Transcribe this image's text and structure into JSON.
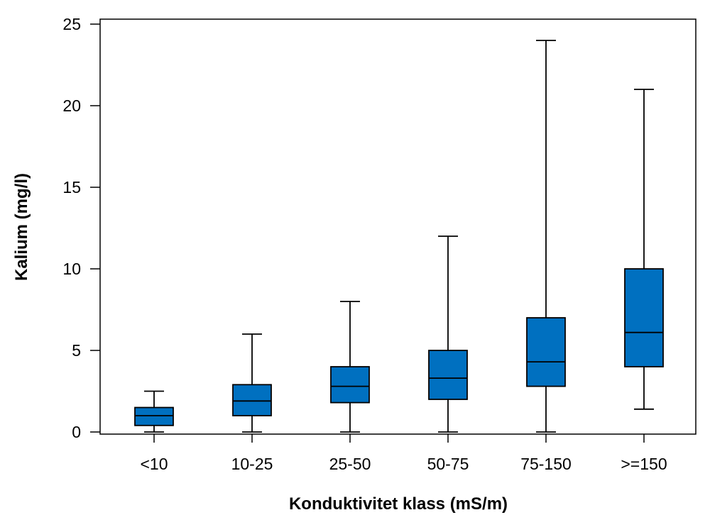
{
  "chart_data": {
    "type": "box",
    "xlabel": "Konduktivitet klass (mS/m)",
    "ylabel": "Kalium (mg/l)",
    "ylim": [
      0,
      25
    ],
    "yticks": [
      0,
      5,
      10,
      15,
      20,
      25
    ],
    "grid": false,
    "box_color": "#0070C0",
    "categories": [
      "<10",
      "10-25",
      "25-50",
      "50-75",
      "75-150",
      ">=150"
    ],
    "boxes": [
      {
        "category": "<10",
        "min": 0,
        "q1": 0.4,
        "median": 1.0,
        "q3": 1.5,
        "max": 2.5
      },
      {
        "category": "10-25",
        "min": 0,
        "q1": 1.0,
        "median": 1.9,
        "q3": 2.9,
        "max": 6.0
      },
      {
        "category": "25-50",
        "min": 0,
        "q1": 1.8,
        "median": 2.8,
        "q3": 4.0,
        "max": 8.0
      },
      {
        "category": "50-75",
        "min": 0,
        "q1": 2.0,
        "median": 3.3,
        "q3": 5.0,
        "max": 12.0
      },
      {
        "category": "75-150",
        "min": 0,
        "q1": 2.8,
        "median": 4.3,
        "q3": 7.0,
        "max": 24.0
      },
      {
        "category": ">=150",
        "min": 1.4,
        "q1": 4.0,
        "median": 6.1,
        "q3": 10.0,
        "max": 21.0
      }
    ]
  }
}
